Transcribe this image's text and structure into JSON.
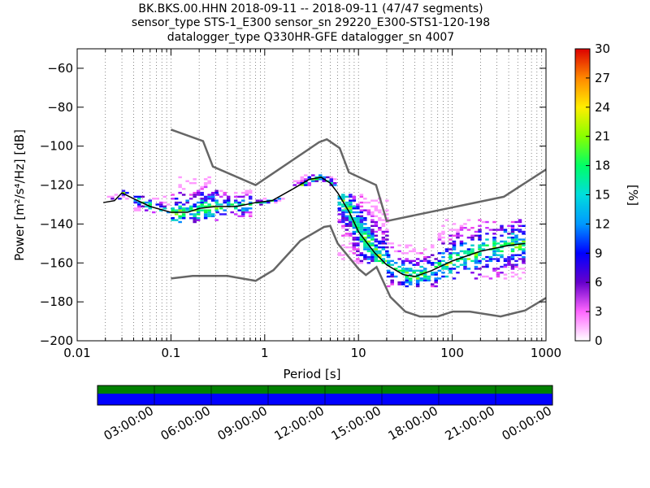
{
  "title": {
    "line1": "BK.BKS.00.HHN   2018-09-11 -- 2018-09-11  (47/47 segments)",
    "line2": "sensor_type STS-1_E300 sensor_sn 29220_E300-STS1-120-198",
    "line3": "datalogger_type Q330HR-GFE datalogger_sn 4007"
  },
  "chart_data": {
    "type": "heatmap",
    "xlabel": "Period [s]",
    "ylabel": "Power [m²/s⁴/Hz] [dB]",
    "xscale": "log",
    "xlim": [
      0.01,
      1000
    ],
    "ylim": [
      -200,
      -50
    ],
    "x_ticks": [
      0.01,
      0.1,
      1,
      10,
      100,
      1000
    ],
    "x_tick_labels": [
      "0.01",
      "0.1",
      "1",
      "10",
      "100",
      "1000"
    ],
    "y_ticks": [
      -200,
      -180,
      -160,
      -140,
      -120,
      -100,
      -80,
      -60
    ],
    "y_tick_labels": [
      "−200",
      "−180",
      "−160",
      "−140",
      "−120",
      "−100",
      "−80",
      "−60"
    ],
    "grid": "dotted vertical",
    "colorbar": {
      "label": "[%]",
      "min": 0,
      "max": 30,
      "ticks": [
        0,
        3,
        6,
        9,
        12,
        15,
        18,
        21,
        24,
        27,
        30
      ],
      "tick_labels": [
        "0",
        "3",
        "6",
        "9",
        "12",
        "15",
        "18",
        "21",
        "24",
        "27",
        "30"
      ]
    },
    "noise_models": [
      {
        "name": "high",
        "x": [
          0.1,
          0.22,
          0.28,
          0.8,
          3.8,
          4.6,
          6.3,
          7.9,
          15.4,
          20,
          354.8,
          1000
        ],
        "y": [
          -91.5,
          -97.4,
          -110.5,
          -120,
          -98,
          -96.5,
          -101,
          -113.5,
          -120,
          -138.5,
          -126,
          -112
        ]
      },
      {
        "name": "low",
        "x": [
          0.1,
          0.17,
          0.4,
          0.8,
          1.24,
          2.4,
          4.3,
          5,
          6,
          10,
          12,
          15.6,
          21.9,
          31.6,
          45,
          70,
          101,
          154,
          328,
          600,
          1000
        ],
        "y": [
          -168,
          -166.7,
          -166.7,
          -169.2,
          -163.7,
          -148.6,
          -141.5,
          -141,
          -150,
          -163,
          -166.2,
          -162.1,
          -177.5,
          -185,
          -187.5,
          -187.5,
          -185,
          -185,
          -187.5,
          -184.4,
          -178
        ]
      }
    ],
    "mean_psd": {
      "x": [
        0.019,
        0.025,
        0.03,
        0.04,
        0.06,
        0.1,
        0.15,
        0.2,
        0.3,
        0.5,
        0.8,
        1.2,
        2,
        3,
        4,
        5,
        6,
        8,
        10,
        15,
        20,
        30,
        40,
        60,
        100,
        200,
        400,
        600
      ],
      "y": [
        -129,
        -128,
        -124,
        -127,
        -131,
        -134,
        -134,
        -132,
        -131,
        -131,
        -129,
        -128,
        -122,
        -117,
        -116,
        -119,
        -124,
        -134,
        -144,
        -155,
        -161,
        -166,
        -167,
        -164,
        -159,
        -154,
        -151,
        -150
      ]
    },
    "distribution": [
      {
        "x": [
          0.019,
          0.035
        ],
        "y": [
          -127,
          -123
        ],
        "cover": "medium"
      },
      {
        "x": [
          0.04,
          0.09
        ],
        "y": [
          -134,
          -126
        ],
        "cover": "medium"
      },
      {
        "x": [
          0.1,
          0.3
        ],
        "y": [
          -139,
          -116
        ],
        "cover": "wide"
      },
      {
        "x": [
          0.3,
          0.7
        ],
        "y": [
          -136,
          -123
        ],
        "cover": "wide"
      },
      {
        "x": [
          0.8,
          1.5
        ],
        "y": [
          -130,
          -127
        ],
        "cover": "narrow"
      },
      {
        "x": [
          2,
          6
        ],
        "y": [
          -120,
          -115
        ],
        "cover": "narrow"
      },
      {
        "x": [
          6,
          20
        ],
        "y": [
          -160,
          -125
        ],
        "cover": "narrow"
      },
      {
        "x": [
          20,
          70
        ],
        "y": [
          -172,
          -150
        ],
        "cover": "wide"
      },
      {
        "x": [
          70,
          600
        ],
        "y": [
          -168,
          -138
        ],
        "cover": "wide"
      }
    ]
  },
  "time_bar": {
    "tick_labels": [
      "03:00:00",
      "06:00:00",
      "09:00:00",
      "12:00:00",
      "15:00:00",
      "18:00:00",
      "21:00:00",
      "00:00:00"
    ],
    "coverage_color": "#008000",
    "data_color": "#0000ff"
  }
}
